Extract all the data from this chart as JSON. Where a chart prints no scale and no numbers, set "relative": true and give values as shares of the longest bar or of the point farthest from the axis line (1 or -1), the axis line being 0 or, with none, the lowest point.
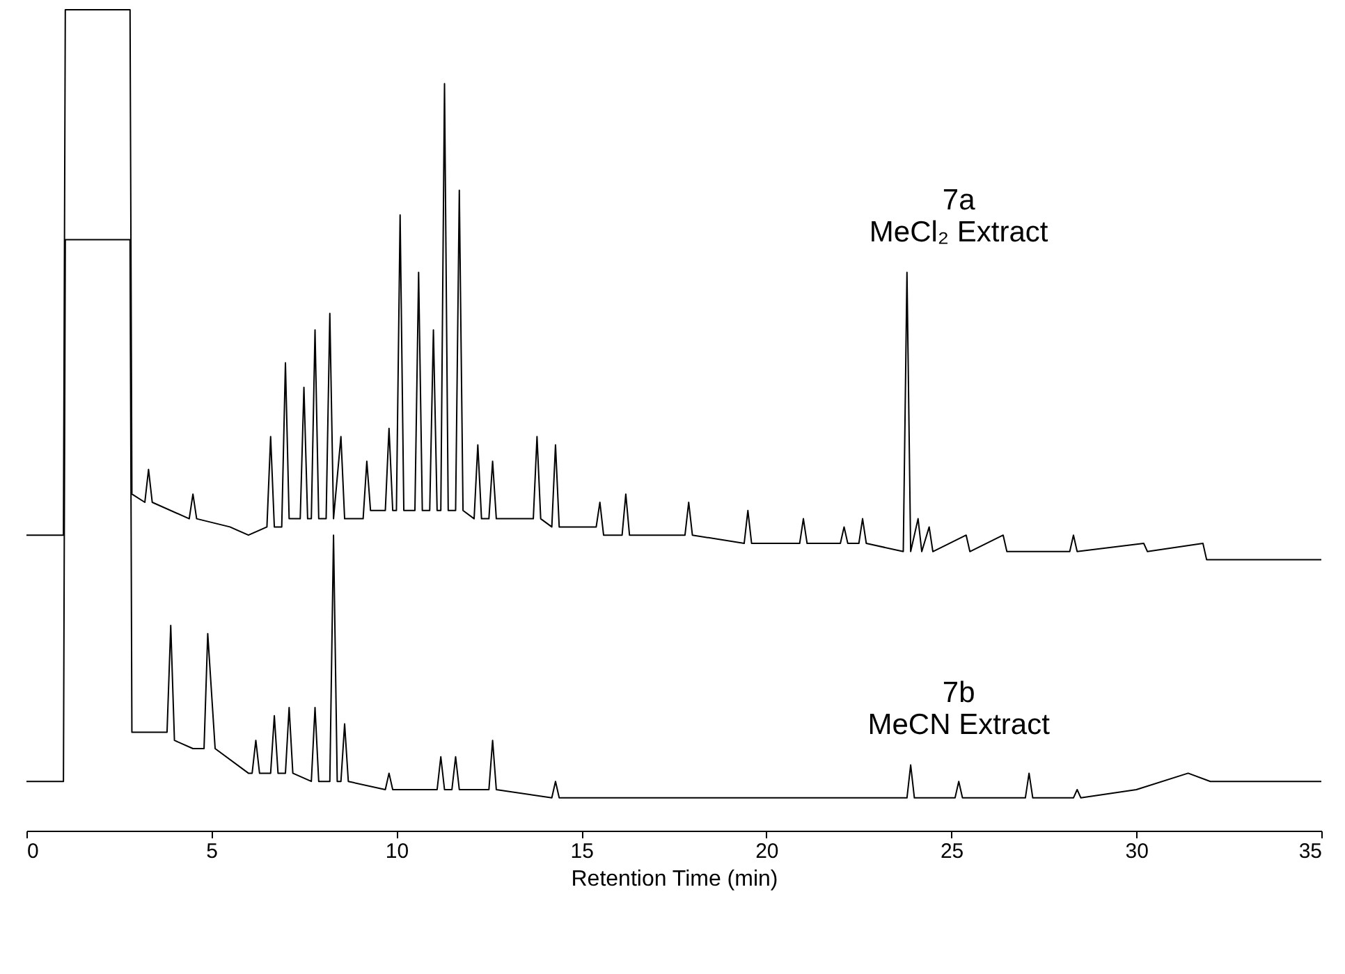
{
  "chart_data": {
    "type": "line",
    "relative": true,
    "xlabel": "Retention Time (min)",
    "xlim": [
      0,
      35
    ],
    "xticks": [
      0,
      5,
      10,
      15,
      20,
      25,
      30,
      35
    ],
    "grid": false,
    "legend": false,
    "marker": "none",
    "line_style": "solid",
    "series": [
      {
        "name": "7a MeCl₂ Extract",
        "color": "#000000",
        "x": [
          0,
          1.0,
          1.05,
          2.8,
          2.85,
          3.2,
          3.3,
          3.4,
          4.4,
          4.5,
          4.6,
          5.5,
          6.0,
          6.5,
          6.6,
          6.7,
          6.9,
          7.0,
          7.1,
          7.4,
          7.5,
          7.6,
          7.7,
          7.8,
          7.9,
          8.1,
          8.2,
          8.3,
          8.5,
          8.6,
          9.1,
          9.2,
          9.3,
          9.7,
          9.8,
          9.9,
          10.0,
          10.1,
          10.2,
          10.5,
          10.6,
          10.7,
          10.9,
          11.0,
          11.1,
          11.2,
          11.3,
          11.4,
          11.6,
          11.7,
          11.8,
          12.1,
          12.2,
          12.3,
          12.5,
          12.6,
          12.7,
          13.7,
          13.8,
          13.9,
          14.2,
          14.3,
          14.4,
          15.4,
          15.5,
          15.6,
          16.1,
          16.2,
          16.3,
          17.8,
          17.9,
          18.0,
          19.4,
          19.5,
          19.6,
          20.9,
          21.0,
          21.1,
          22.0,
          22.1,
          22.2,
          22.5,
          22.6,
          22.7,
          23.7,
          23.8,
          23.9,
          24.1,
          24.2,
          24.4,
          24.5,
          25.4,
          25.5,
          26.4,
          26.5,
          28.2,
          28.3,
          28.4,
          30.2,
          30.3,
          31.8,
          31.9,
          35
        ],
        "values": [
          0.36,
          0.36,
          1.0,
          1.0,
          0.41,
          0.4,
          0.44,
          0.4,
          0.38,
          0.41,
          0.38,
          0.37,
          0.36,
          0.37,
          0.48,
          0.37,
          0.37,
          0.57,
          0.38,
          0.38,
          0.54,
          0.38,
          0.38,
          0.61,
          0.38,
          0.38,
          0.63,
          0.38,
          0.48,
          0.38,
          0.38,
          0.45,
          0.39,
          0.39,
          0.49,
          0.39,
          0.39,
          0.75,
          0.39,
          0.39,
          0.68,
          0.39,
          0.39,
          0.61,
          0.39,
          0.39,
          0.91,
          0.39,
          0.39,
          0.78,
          0.39,
          0.38,
          0.47,
          0.38,
          0.38,
          0.45,
          0.38,
          0.38,
          0.48,
          0.38,
          0.37,
          0.47,
          0.37,
          0.37,
          0.4,
          0.36,
          0.36,
          0.41,
          0.36,
          0.36,
          0.4,
          0.36,
          0.35,
          0.39,
          0.35,
          0.35,
          0.38,
          0.35,
          0.35,
          0.37,
          0.35,
          0.35,
          0.38,
          0.35,
          0.34,
          0.68,
          0.34,
          0.38,
          0.34,
          0.37,
          0.34,
          0.36,
          0.34,
          0.36,
          0.34,
          0.34,
          0.36,
          0.34,
          0.35,
          0.34,
          0.35,
          0.33,
          0.33
        ]
      },
      {
        "name": "7b MeCN Extract",
        "color": "#000000",
        "x": [
          0,
          1.0,
          1.05,
          2.8,
          2.85,
          3.2,
          3.8,
          3.9,
          4.0,
          4.5,
          4.8,
          4.9,
          5.1,
          6.0,
          6.1,
          6.2,
          6.3,
          6.6,
          6.7,
          6.8,
          7.0,
          7.1,
          7.2,
          7.7,
          7.8,
          7.9,
          8.2,
          8.3,
          8.4,
          8.5,
          8.6,
          8.7,
          9.7,
          9.8,
          9.9,
          11.1,
          11.2,
          11.3,
          11.5,
          11.6,
          11.7,
          12.5,
          12.6,
          12.7,
          14.2,
          14.3,
          14.4,
          19.5,
          23.8,
          23.9,
          24.0,
          25.1,
          25.2,
          25.3,
          27.0,
          27.1,
          27.2,
          28.3,
          28.4,
          28.5,
          30.0,
          31.4,
          32.0,
          35
        ],
        "values": [
          0.06,
          0.06,
          0.72,
          0.72,
          0.12,
          0.12,
          0.12,
          0.25,
          0.11,
          0.1,
          0.1,
          0.24,
          0.1,
          0.07,
          0.07,
          0.11,
          0.07,
          0.07,
          0.14,
          0.07,
          0.07,
          0.15,
          0.07,
          0.06,
          0.15,
          0.06,
          0.06,
          0.36,
          0.06,
          0.06,
          0.13,
          0.06,
          0.05,
          0.07,
          0.05,
          0.05,
          0.09,
          0.05,
          0.05,
          0.09,
          0.05,
          0.05,
          0.11,
          0.05,
          0.04,
          0.06,
          0.04,
          0.04,
          0.04,
          0.08,
          0.04,
          0.04,
          0.06,
          0.04,
          0.04,
          0.07,
          0.04,
          0.04,
          0.05,
          0.04,
          0.05,
          0.07,
          0.06,
          0.06
        ]
      }
    ]
  }
}
